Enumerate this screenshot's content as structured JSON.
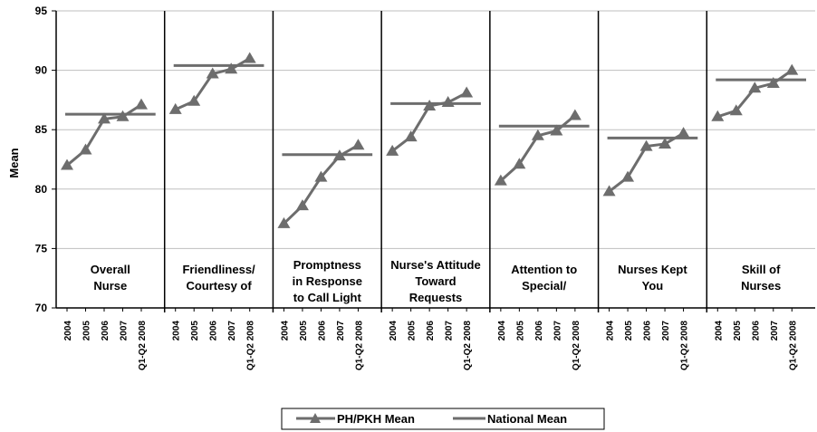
{
  "chart_data": {
    "type": "line",
    "ylabel": "Mean",
    "ylim": [
      70,
      95
    ],
    "yticks": [
      70,
      75,
      80,
      85,
      90,
      95
    ],
    "grid": true,
    "legend_position": "bottom",
    "x_categories": [
      "2004",
      "2005",
      "2006",
      "2007",
      "Q1-Q2 2008"
    ],
    "series": [
      {
        "name": "PH/PKH Mean",
        "color": "#6d6d6d",
        "marker": "triangle"
      },
      {
        "name": "National Mean",
        "color": "#6d6d6d",
        "marker": "none"
      }
    ],
    "panels": [
      {
        "label_lines": [
          "Overall",
          "Nurse"
        ],
        "values": [
          82.0,
          83.3,
          85.9,
          86.1,
          87.1
        ],
        "national_mean": 86.3
      },
      {
        "label_lines": [
          "Friendliness/",
          "Courtesy of"
        ],
        "values": [
          86.7,
          87.4,
          89.7,
          90.1,
          91.0
        ],
        "national_mean": 90.4
      },
      {
        "label_lines": [
          "Promptness",
          "in Response",
          "to Call Light"
        ],
        "values": [
          77.1,
          78.6,
          81.0,
          82.8,
          83.7
        ],
        "national_mean": 82.9
      },
      {
        "label_lines": [
          "Nurse's Attitude",
          "Toward",
          "Requests"
        ],
        "values": [
          83.2,
          84.4,
          87.0,
          87.3,
          88.1
        ],
        "national_mean": 87.2
      },
      {
        "label_lines": [
          "Attention to",
          "Special/"
        ],
        "values": [
          80.7,
          82.1,
          84.5,
          84.9,
          86.2
        ],
        "national_mean": 85.3
      },
      {
        "label_lines": [
          "Nurses Kept",
          "You"
        ],
        "values": [
          79.8,
          81.0,
          83.6,
          83.8,
          84.7
        ],
        "national_mean": 84.3
      },
      {
        "label_lines": [
          "Skill of",
          "Nurses"
        ],
        "values": [
          86.1,
          86.6,
          88.5,
          88.9,
          90.0
        ],
        "national_mean": 89.2
      }
    ]
  }
}
